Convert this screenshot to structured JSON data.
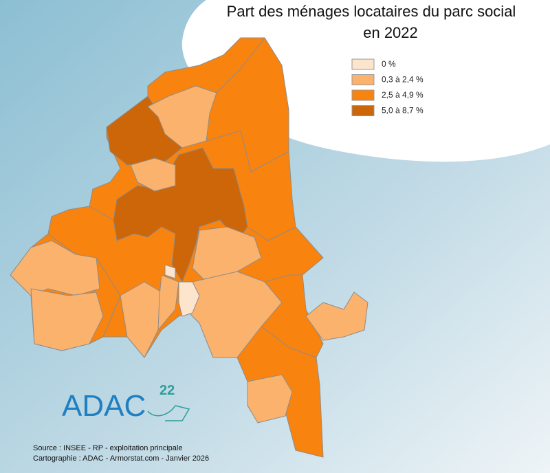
{
  "title": [
    "Part des ménages locataires du parc social",
    "en 2022"
  ],
  "legend": [
    {
      "label": "0 %",
      "color": "#fde4cc"
    },
    {
      "label": "0,3 à 2,4 %",
      "color": "#fbb26c"
    },
    {
      "label": "2,5 à 4,9 %",
      "color": "#f8830f"
    },
    {
      "label": "5,0 à 8,7 %",
      "color": "#cc6608"
    }
  ],
  "logo": {
    "name": "ADAC",
    "number": "22"
  },
  "source": [
    "Source : INSEE - RP - exploitation principale",
    "Cartographie : ADAC - Armorstat.com - Janvier 2026"
  ]
}
